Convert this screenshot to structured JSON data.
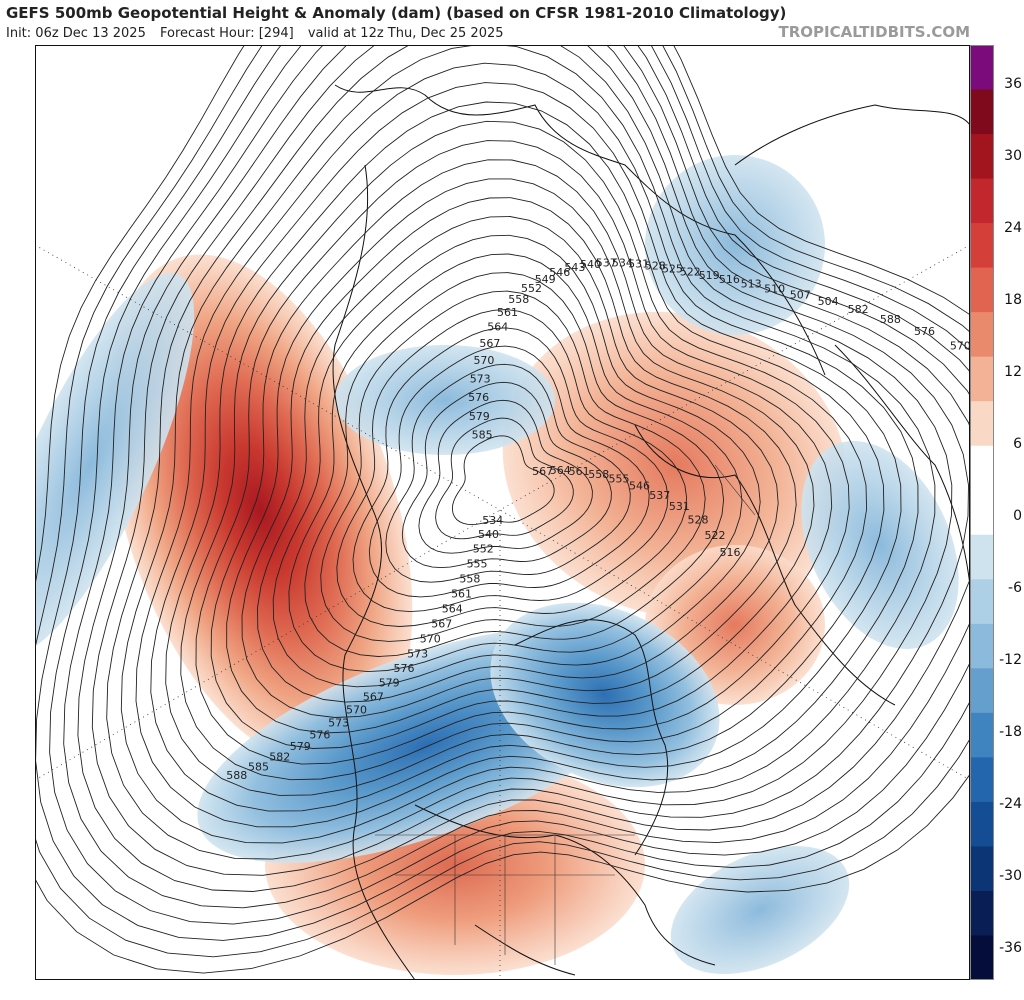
{
  "header": {
    "title": "GEFS 500mb Geopotential Height & Anomaly (dam) (based on CFSR 1981-2010 Climatology)",
    "init": "Init: 06z Dec 13 2025",
    "forecast_hour": "Forecast Hour: [294]",
    "valid": "valid at 12z Thu, Dec 25 2025",
    "credit": "TROPICALTIDBITS.COM"
  },
  "colorbar": {
    "ticks": [
      "36",
      "30",
      "24",
      "18",
      "12",
      "6",
      "0",
      "-6",
      "-12",
      "-18",
      "-24",
      "-30",
      "-36"
    ],
    "colors": [
      "#7b0a7b",
      "#7e0a1c",
      "#a2141e",
      "#c1272d",
      "#d53f3a",
      "#e06450",
      "#ea8a6d",
      "#f3b295",
      "#f9d8c6",
      "#ffffff",
      "#ffffff",
      "#cfe3ef",
      "#aed0e6",
      "#8cbadc",
      "#649fce",
      "#3f83bf",
      "#2466ad",
      "#144d93",
      "#0c3575",
      "#081e54",
      "#050e3a"
    ]
  },
  "map": {
    "contour_labels": [
      "585",
      "579",
      "576",
      "573",
      "570",
      "567",
      "564",
      "561",
      "558",
      "552",
      "549",
      "546",
      "543",
      "540",
      "537",
      "534",
      "531",
      "528",
      "525",
      "522",
      "519",
      "516",
      "513",
      "510",
      "507",
      "504",
      "582",
      "588",
      "576",
      "570",
      "567",
      "564",
      "561",
      "558",
      "555",
      "546",
      "537",
      "531",
      "528",
      "522",
      "516"
    ],
    "north_america_labels": [
      "534",
      "540",
      "552",
      "555",
      "558",
      "561",
      "564",
      "567",
      "570",
      "573",
      "576",
      "579",
      "567",
      "570",
      "573",
      "576",
      "579",
      "582",
      "585",
      "588"
    ]
  }
}
